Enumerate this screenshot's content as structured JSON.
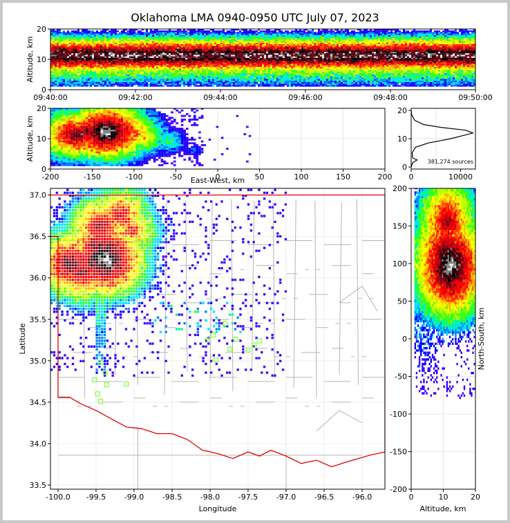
{
  "title": "Oklahoma LMA 0940-0950 UTC July 07, 2023",
  "colors": {
    "density_scale": [
      "#3a00ff",
      "#0000ff",
      "#0080ff",
      "#00e0ff",
      "#00ff80",
      "#40ff00",
      "#c0ff00",
      "#ffff00",
      "#ffb000",
      "#ff4000",
      "#ff0000",
      "#c00010",
      "#600010",
      "#000000",
      "#808080",
      "#e6e6e6"
    ],
    "state_border": "#e00000",
    "county_lines": "#b4b4b4",
    "stations": "#7cff3c"
  },
  "chart_data": [
    {
      "id": "time_height",
      "type": "heatmap",
      "ylabel": "Altitude, km",
      "x_ticks": [
        "09:40:00",
        "09:42:00",
        "09:44:00",
        "09:46:00",
        "09:48:00",
        "09:50:00"
      ],
      "y_ticks": [
        "0",
        "10",
        "20"
      ],
      "xlim": [
        "09:40:00",
        "09:50:00"
      ],
      "ylim": [
        0,
        20
      ],
      "band_core_km": 11,
      "band_halfwidth_km": 3
    },
    {
      "id": "ew_altitude",
      "type": "heatmap",
      "xlabel": "East-West, km",
      "ylabel": "Altitude, km",
      "x_ticks": [
        "-200",
        "-150",
        "-100",
        "-50",
        "0",
        "50",
        "100",
        "150",
        "200"
      ],
      "y_ticks": [
        "0",
        "10",
        "20"
      ],
      "xlim": [
        -200,
        200
      ],
      "ylim": [
        0,
        20
      ],
      "cells": [
        {
          "x": -170,
          "z": 11,
          "level": 13
        },
        {
          "x": -160,
          "z": 12,
          "level": 12
        },
        {
          "x": -135,
          "z": 12,
          "level": 15
        },
        {
          "x": -110,
          "z": 12,
          "level": 11
        },
        {
          "x": -90,
          "z": 10,
          "level": 8
        },
        {
          "x": -60,
          "z": 9,
          "level": 5
        },
        {
          "x": -30,
          "z": 6,
          "level": 2
        }
      ]
    },
    {
      "id": "altitude_histogram",
      "type": "line",
      "annotation": "381,274 sources",
      "x_ticks": [
        "0",
        "10000"
      ],
      "y_ticks": [
        "0",
        "10",
        "20"
      ],
      "xlim": [
        0,
        13000
      ],
      "ylim": [
        0,
        20
      ],
      "x": [
        0,
        300,
        1200,
        300,
        200,
        900,
        3500,
        8000,
        12500,
        11000,
        6000,
        2500,
        700,
        100,
        0
      ],
      "y": [
        0,
        1.5,
        2.5,
        3.2,
        5,
        7,
        8.5,
        10,
        12,
        13,
        14,
        15,
        16.5,
        18.5,
        20
      ]
    },
    {
      "id": "plan_view",
      "type": "scatter",
      "xlabel": "Longitude",
      "ylabel": "Latitude",
      "x_ticks": [
        "-100.0",
        "-99.5",
        "-99.0",
        "-98.5",
        "-98.0",
        "-97.5",
        "-97.0",
        "-96.5",
        "-96.0"
      ],
      "y_ticks": [
        "33.5",
        "34.0",
        "34.5",
        "35.0",
        "35.5",
        "36.0",
        "36.5",
        "37.0"
      ],
      "xlim": [
        -100.1,
        -95.7
      ],
      "ylim": [
        33.45,
        37.08
      ],
      "cells": [
        {
          "lon": -99.85,
          "lat": 36.15,
          "level": 13
        },
        {
          "lon": -99.7,
          "lat": 36.05,
          "level": 12
        },
        {
          "lon": -99.45,
          "lat": 36.6,
          "level": 12
        },
        {
          "lon": -99.4,
          "lat": 36.2,
          "level": 15
        },
        {
          "lon": -99.45,
          "lat": 36.35,
          "level": 13
        },
        {
          "lon": -99.2,
          "lat": 36.75,
          "level": 11
        },
        {
          "lon": -99.05,
          "lat": 36.55,
          "level": 10
        }
      ],
      "stations": [
        {
          "lon": -99.52,
          "lat": 34.77
        },
        {
          "lon": -99.48,
          "lat": 34.6
        },
        {
          "lon": -99.44,
          "lat": 34.51
        },
        {
          "lon": -99.44,
          "lat": 34.98
        },
        {
          "lon": -99.38,
          "lat": 34.86
        },
        {
          "lon": -99.36,
          "lat": 34.71
        },
        {
          "lon": -99.1,
          "lat": 34.72
        },
        {
          "lon": -98.04,
          "lat": 35.25
        },
        {
          "lon": -97.96,
          "lat": 35.31
        },
        {
          "lon": -97.92,
          "lat": 35.01
        },
        {
          "lon": -97.8,
          "lat": 35.45
        },
        {
          "lon": -97.74,
          "lat": 35.14
        },
        {
          "lon": -97.66,
          "lat": 35.26
        },
        {
          "lon": -97.5,
          "lat": 35.13
        },
        {
          "lon": -97.42,
          "lat": 35.19
        },
        {
          "lon": -97.35,
          "lat": 35.24
        }
      ]
    },
    {
      "id": "altitude_ns",
      "type": "heatmap",
      "xlabel": "Altitude, km",
      "ylabel": "North-South, km",
      "x_ticks": [
        "0",
        "10",
        "20"
      ],
      "y_ticks": [
        "200",
        "150",
        "100",
        "50",
        "0",
        "-50",
        "-100",
        "-150",
        "-200"
      ],
      "xlim": [
        0,
        20
      ],
      "ylim": [
        -200,
        200
      ],
      "cells": [
        {
          "z": 11,
          "y": 155,
          "level": 12
        },
        {
          "z": 11,
          "y": 130,
          "level": 11
        },
        {
          "z": 11,
          "y": 105,
          "level": 14
        },
        {
          "z": 12,
          "y": 95,
          "level": 15
        },
        {
          "z": 10,
          "y": 80,
          "level": 12
        },
        {
          "z": 8,
          "y": 60,
          "level": 7
        }
      ]
    }
  ]
}
